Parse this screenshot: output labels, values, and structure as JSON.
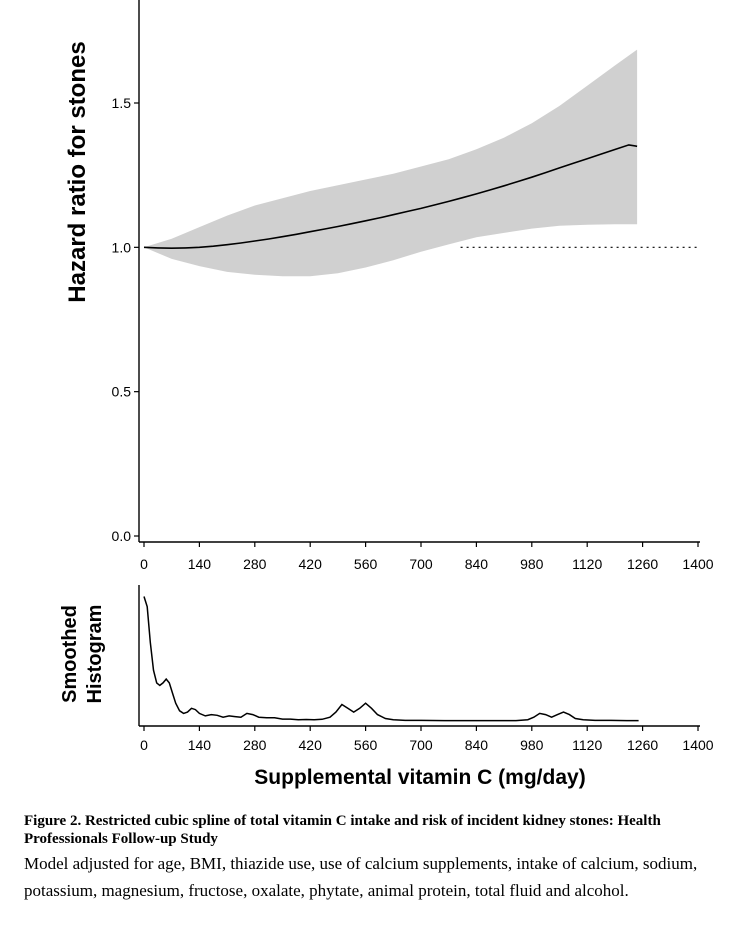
{
  "chart_data": [
    {
      "type": "area",
      "xlabel": "",
      "ylabel": "Hazard ratio for stones",
      "xlim": [
        0,
        1400
      ],
      "ylim": [
        0,
        1.8
      ],
      "x_ticks": [
        "0",
        "140",
        "280",
        "420",
        "560",
        "700",
        "840",
        "980",
        "1120",
        "1260",
        "1400"
      ],
      "y_ticks": [
        "0.0",
        "0.5",
        "1.0",
        "1.5"
      ],
      "series": [
        {
          "kind": "line",
          "x": [
            0,
            35,
            70,
            105,
            140,
            175,
            210,
            245,
            280,
            315,
            350,
            385,
            420,
            455,
            490,
            525,
            560,
            595,
            630,
            665,
            700,
            735,
            770,
            805,
            840,
            875,
            910,
            945,
            980,
            1015,
            1050,
            1085,
            1120,
            1155,
            1190,
            1225,
            1246
          ],
          "y": [
            1.0,
            0.998,
            0.997,
            0.998,
            1.0,
            1.004,
            1.009,
            1.015,
            1.022,
            1.029,
            1.037,
            1.045,
            1.054,
            1.063,
            1.072,
            1.082,
            1.092,
            1.102,
            1.113,
            1.124,
            1.135,
            1.147,
            1.159,
            1.172,
            1.185,
            1.199,
            1.213,
            1.228,
            1.243,
            1.259,
            1.275,
            1.291,
            1.307,
            1.323,
            1.339,
            1.355,
            1.35
          ]
        },
        {
          "kind": "band",
          "x": [
            0,
            70,
            140,
            210,
            280,
            350,
            420,
            490,
            560,
            630,
            700,
            770,
            840,
            910,
            980,
            1050,
            1120,
            1190,
            1246
          ],
          "upper": [
            1.0,
            1.03,
            1.07,
            1.11,
            1.145,
            1.17,
            1.195,
            1.215,
            1.235,
            1.255,
            1.28,
            1.305,
            1.34,
            1.38,
            1.43,
            1.49,
            1.56,
            1.63,
            1.685
          ],
          "lower": [
            1.0,
            0.96,
            0.935,
            0.915,
            0.905,
            0.9,
            0.9,
            0.91,
            0.93,
            0.955,
            0.985,
            1.01,
            1.035,
            1.05,
            1.065,
            1.075,
            1.078,
            1.08,
            1.08
          ]
        },
        {
          "kind": "reference",
          "x": [
            800,
            1400
          ],
          "y": [
            1.0,
            1.0
          ]
        }
      ]
    },
    {
      "type": "line",
      "xlabel": "Supplemental vitamin C (mg/day)",
      "ylabel": "Smoothed Histogram",
      "xlim": [
        0,
        1400
      ],
      "ylim": [
        0,
        1
      ],
      "x_ticks": [
        "0",
        "140",
        "280",
        "420",
        "560",
        "700",
        "840",
        "980",
        "1120",
        "1260",
        "1400"
      ],
      "series": [
        {
          "x": [
            0,
            8,
            16,
            24,
            32,
            40,
            48,
            56,
            64,
            72,
            80,
            90,
            100,
            110,
            120,
            130,
            140,
            155,
            170,
            185,
            200,
            215,
            230,
            245,
            260,
            275,
            290,
            310,
            330,
            350,
            370,
            390,
            410,
            430,
            450,
            470,
            485,
            500,
            515,
            530,
            545,
            560,
            575,
            590,
            610,
            630,
            660,
            700,
            760,
            820,
            880,
            940,
            970,
            985,
            1000,
            1015,
            1030,
            1045,
            1060,
            1075,
            1090,
            1110,
            1140,
            1180,
            1220,
            1250
          ],
          "y": [
            0.98,
            0.9,
            0.62,
            0.4,
            0.3,
            0.28,
            0.3,
            0.33,
            0.3,
            0.22,
            0.14,
            0.08,
            0.06,
            0.07,
            0.1,
            0.09,
            0.06,
            0.04,
            0.05,
            0.045,
            0.03,
            0.04,
            0.035,
            0.03,
            0.06,
            0.05,
            0.03,
            0.025,
            0.025,
            0.015,
            0.015,
            0.01,
            0.012,
            0.01,
            0.013,
            0.03,
            0.07,
            0.13,
            0.1,
            0.07,
            0.1,
            0.14,
            0.1,
            0.05,
            0.02,
            0.01,
            0.005,
            0.005,
            0.003,
            0.003,
            0.003,
            0.003,
            0.01,
            0.03,
            0.06,
            0.05,
            0.03,
            0.05,
            0.07,
            0.05,
            0.02,
            0.01,
            0.005,
            0.005,
            0.003,
            0.003
          ]
        }
      ]
    }
  ],
  "caption": {
    "title": "Figure 2. Restricted cubic spline of total vitamin C intake and risk of incident kidney stones: Health Professionals Follow-up Study",
    "body": "Model adjusted for age, BMI, thiazide use, use of calcium supplements, intake of calcium, sodium, potassium, magnesium, fructose, oxalate, phytate, animal protein, total fluid and alcohol."
  }
}
